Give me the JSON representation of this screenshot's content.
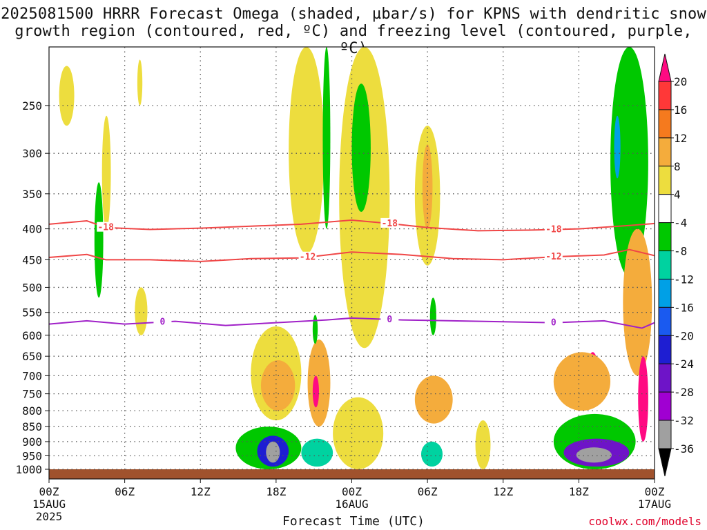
{
  "title_line1": "2025081500 HRRR Forecast Omega (shaded, µbar/s) for KPNS with dendritic snow",
  "title_line2": "growth region (contoured, red, ºC) and freezing level (contoured, purple, ºC)",
  "xlabel": "Forecast Time (UTC)",
  "credit": "coolwx.com/models",
  "chart_data": {
    "type": "heatmap",
    "title": "2025081500 HRRR Forecast Omega (shaded, µbar/s) for KPNS with dendritic snow growth region (contoured, red, ºC) and freezing level (contoured, purple, ºC)",
    "xlabel": "Forecast Time (UTC)",
    "ylabel": "",
    "x_tick_labels": [
      {
        "t": 0,
        "label": "00Z",
        "sub": "15AUG",
        "sub2": "2025"
      },
      {
        "t": 6,
        "label": "06Z"
      },
      {
        "t": 12,
        "label": "12Z"
      },
      {
        "t": 18,
        "label": "18Z"
      },
      {
        "t": 24,
        "label": "00Z",
        "sub": "16AUG"
      },
      {
        "t": 30,
        "label": "06Z"
      },
      {
        "t": 36,
        "label": "12Z"
      },
      {
        "t": 42,
        "label": "18Z"
      },
      {
        "t": 48,
        "label": "00Z",
        "sub": "17AUG"
      }
    ],
    "xlim": [
      0,
      48
    ],
    "y_scale": "log",
    "ylim_hPa": [
      1000,
      200
    ],
    "y_ticks": [
      250,
      300,
      350,
      400,
      450,
      500,
      550,
      600,
      650,
      700,
      750,
      800,
      850,
      900,
      950,
      1000
    ],
    "colorbar": {
      "labels": [
        "20",
        "16",
        "12",
        "8",
        "4",
        "-4",
        "-8",
        "-12",
        "-16",
        "-20",
        "-24",
        "-28",
        "-32",
        "-36"
      ],
      "colors": [
        "#ff0a82",
        "#ff3838",
        "#f57a1e",
        "#f4ac3c",
        "#eddd3e",
        "#ffffff",
        "#00c800",
        "#00d2a0",
        "#00a0e6",
        "#1a5af0",
        "#1e1ed2",
        "#6e14c8",
        "#a000d2",
        "#a0a0a0",
        "#000000"
      ]
    },
    "contours": [
      {
        "name": "-18",
        "color": "#f04646",
        "label_times": [
          4.5,
          27,
          40
        ],
        "t": [
          0,
          3,
          4.5,
          8,
          12,
          16,
          20,
          24,
          27,
          30,
          34,
          38,
          42,
          46,
          48
        ],
        "p": [
          393,
          388,
          398,
          401,
          399,
          396,
          393,
          387,
          392,
          398,
          403,
          402,
          400,
          395,
          392
        ]
      },
      {
        "name": "-12",
        "color": "#f04646",
        "label_times": [
          20.5,
          40
        ],
        "t": [
          0,
          3,
          4.5,
          8,
          12,
          16,
          20,
          24,
          28,
          32,
          36,
          40,
          44,
          46,
          48
        ],
        "p": [
          446,
          441,
          450,
          450,
          453,
          448,
          447,
          437,
          441,
          448,
          450,
          445,
          442,
          433,
          443
        ]
      },
      {
        "name": "0",
        "color": "#a020c8",
        "label_times": [
          9,
          27,
          40
        ],
        "t": [
          0,
          3,
          6,
          10,
          14,
          18,
          22,
          24,
          28,
          32,
          36,
          40,
          44,
          47,
          48
        ],
        "p": [
          575,
          568,
          575,
          569,
          578,
          572,
          566,
          562,
          566,
          568,
          570,
          572,
          568,
          584,
          572
        ]
      }
    ],
    "shaded_regions": [
      {
        "t0": 0.8,
        "t1": 2.0,
        "p0": 215,
        "p1": 270,
        "value": 4
      },
      {
        "t0": 3.6,
        "t1": 4.3,
        "p0": 335,
        "p1": 520,
        "value": -8
      },
      {
        "t0": 4.2,
        "t1": 4.9,
        "p0": 260,
        "p1": 400,
        "value": 4
      },
      {
        "t0": 7.0,
        "t1": 7.4,
        "p0": 210,
        "p1": 250,
        "value": 4
      },
      {
        "t0": 6.8,
        "t1": 7.8,
        "p0": 500,
        "p1": 600,
        "value": 4
      },
      {
        "t0": 16.0,
        "t1": 20.0,
        "p0": 580,
        "p1": 830,
        "value": 4
      },
      {
        "t0": 16.8,
        "t1": 19.5,
        "p0": 660,
        "p1": 800,
        "value": 8
      },
      {
        "t0": 14.8,
        "t1": 20.0,
        "p0": 850,
        "p1": 1000,
        "value": -8
      },
      {
        "t0": 16.5,
        "t1": 19.0,
        "p0": 880,
        "p1": 990,
        "value": -24
      },
      {
        "t0": 17.2,
        "t1": 18.3,
        "p0": 900,
        "p1": 975,
        "value": -36
      },
      {
        "t0": 20.5,
        "t1": 22.3,
        "p0": 610,
        "p1": 850,
        "value": 8
      },
      {
        "t0": 20.9,
        "t1": 21.4,
        "p0": 700,
        "p1": 790,
        "value": 20
      },
      {
        "t0": 20.0,
        "t1": 22.5,
        "p0": 890,
        "p1": 990,
        "value": -12
      },
      {
        "t0": 20.9,
        "t1": 21.3,
        "p0": 555,
        "p1": 620,
        "value": -8
      },
      {
        "t0": 19.0,
        "t1": 21.8,
        "p0": 200,
        "p1": 440,
        "value": 4
      },
      {
        "t0": 21.7,
        "t1": 22.3,
        "p0": 200,
        "p1": 400,
        "value": -8
      },
      {
        "t0": 23.0,
        "t1": 27.0,
        "p0": 200,
        "p1": 630,
        "value": 4
      },
      {
        "t0": 24.0,
        "t1": 25.5,
        "p0": 230,
        "p1": 375,
        "value": -8
      },
      {
        "t0": 22.5,
        "t1": 26.5,
        "p0": 760,
        "p1": 1000,
        "value": 4
      },
      {
        "t0": 29.0,
        "t1": 31.0,
        "p0": 270,
        "p1": 460,
        "value": 4
      },
      {
        "t0": 29.6,
        "t1": 30.4,
        "p0": 290,
        "p1": 400,
        "value": 8
      },
      {
        "t0": 30.2,
        "t1": 30.7,
        "p0": 520,
        "p1": 600,
        "value": -8
      },
      {
        "t0": 29.0,
        "t1": 32.0,
        "p0": 700,
        "p1": 840,
        "value": 8
      },
      {
        "t0": 29.5,
        "t1": 31.2,
        "p0": 900,
        "p1": 990,
        "value": -12
      },
      {
        "t0": 33.8,
        "t1": 35.0,
        "p0": 830,
        "p1": 1000,
        "value": 4
      },
      {
        "t0": 40.0,
        "t1": 46.5,
        "p0": 810,
        "p1": 1000,
        "value": -8
      },
      {
        "t0": 40.8,
        "t1": 46.0,
        "p0": 890,
        "p1": 990,
        "value": -28
      },
      {
        "t0": 41.8,
        "t1": 44.6,
        "p0": 920,
        "p1": 975,
        "value": -36
      },
      {
        "t0": 44.5,
        "t1": 47.5,
        "p0": 200,
        "p1": 480,
        "value": -8
      },
      {
        "t0": 44.8,
        "t1": 45.3,
        "p0": 260,
        "p1": 330,
        "value": -16
      },
      {
        "t0": 45.5,
        "t1": 47.8,
        "p0": 400,
        "p1": 700,
        "value": 8
      },
      {
        "t0": 46.7,
        "t1": 47.5,
        "p0": 650,
        "p1": 900,
        "value": 20
      },
      {
        "t0": 42.6,
        "t1": 43.6,
        "p0": 640,
        "p1": 780,
        "value": 20
      },
      {
        "t0": 40.0,
        "t1": 44.5,
        "p0": 640,
        "p1": 800,
        "value": 8
      }
    ]
  }
}
